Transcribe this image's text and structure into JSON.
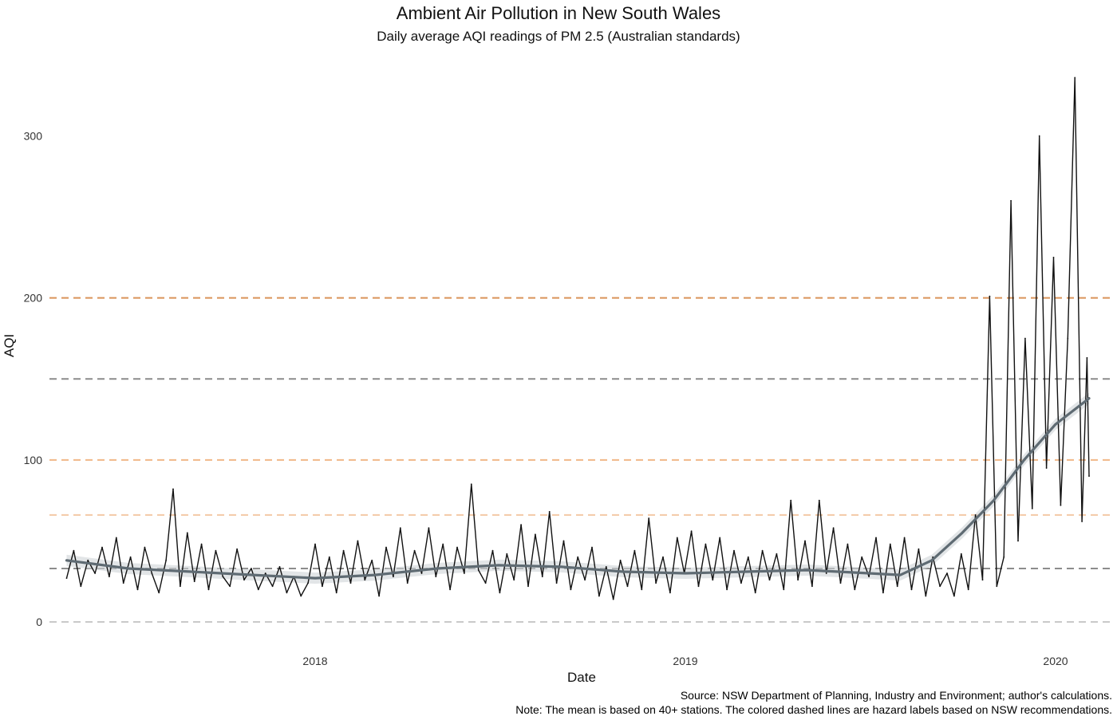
{
  "chart_data": {
    "type": "line",
    "title": "Ambient Air Pollution in New South Wales",
    "subtitle": "Daily average AQI readings of PM 2.5 (Australian standards)",
    "xlabel": "Date",
    "ylabel": "AQI",
    "x_ticks": [
      "2018",
      "2019",
      "2020"
    ],
    "y_ticks": [
      0,
      100,
      200,
      300
    ],
    "xlim": [
      "2017-05-01",
      "2020-02-10"
    ],
    "ylim": [
      -15,
      340
    ],
    "grid": false,
    "hazard_lines": [
      {
        "value": 0,
        "color": "#c9c9c9"
      },
      {
        "value": 33,
        "color": "#8c8c8c"
      },
      {
        "value": 66,
        "color": "#f3c9a6"
      },
      {
        "value": 100,
        "color": "#f1b887"
      },
      {
        "value": 150,
        "color": "#8c8c8c"
      },
      {
        "value": 200,
        "color": "#d9935a"
      }
    ],
    "series": [
      {
        "kind": "raw",
        "color": "#111111",
        "points": [
          [
            "2017-05-01",
            27
          ],
          [
            "2017-05-08",
            44
          ],
          [
            "2017-05-15",
            22
          ],
          [
            "2017-05-22",
            38
          ],
          [
            "2017-05-29",
            30
          ],
          [
            "2017-06-05",
            46
          ],
          [
            "2017-06-12",
            28
          ],
          [
            "2017-06-19",
            52
          ],
          [
            "2017-06-26",
            24
          ],
          [
            "2017-07-03",
            40
          ],
          [
            "2017-07-10",
            20
          ],
          [
            "2017-07-17",
            46
          ],
          [
            "2017-07-24",
            30
          ],
          [
            "2017-07-31",
            18
          ],
          [
            "2017-08-07",
            38
          ],
          [
            "2017-08-14",
            82
          ],
          [
            "2017-08-21",
            22
          ],
          [
            "2017-08-28",
            55
          ],
          [
            "2017-09-04",
            25
          ],
          [
            "2017-09-11",
            48
          ],
          [
            "2017-09-18",
            20
          ],
          [
            "2017-09-25",
            44
          ],
          [
            "2017-10-02",
            28
          ],
          [
            "2017-10-09",
            22
          ],
          [
            "2017-10-16",
            45
          ],
          [
            "2017-10-23",
            26
          ],
          [
            "2017-10-30",
            33
          ],
          [
            "2017-11-06",
            20
          ],
          [
            "2017-11-13",
            30
          ],
          [
            "2017-11-20",
            22
          ],
          [
            "2017-11-27",
            34
          ],
          [
            "2017-12-04",
            18
          ],
          [
            "2017-12-11",
            28
          ],
          [
            "2017-12-18",
            16
          ],
          [
            "2017-12-25",
            24
          ],
          [
            "2018-01-01",
            48
          ],
          [
            "2018-01-08",
            22
          ],
          [
            "2018-01-15",
            40
          ],
          [
            "2018-01-22",
            18
          ],
          [
            "2018-01-29",
            44
          ],
          [
            "2018-02-05",
            24
          ],
          [
            "2018-02-12",
            50
          ],
          [
            "2018-02-19",
            26
          ],
          [
            "2018-02-26",
            38
          ],
          [
            "2018-03-05",
            16
          ],
          [
            "2018-03-12",
            46
          ],
          [
            "2018-03-19",
            28
          ],
          [
            "2018-03-26",
            58
          ],
          [
            "2018-04-02",
            24
          ],
          [
            "2018-04-09",
            44
          ],
          [
            "2018-04-16",
            30
          ],
          [
            "2018-04-23",
            58
          ],
          [
            "2018-04-30",
            28
          ],
          [
            "2018-05-07",
            48
          ],
          [
            "2018-05-14",
            20
          ],
          [
            "2018-05-21",
            46
          ],
          [
            "2018-05-28",
            30
          ],
          [
            "2018-06-04",
            85
          ],
          [
            "2018-06-11",
            32
          ],
          [
            "2018-06-18",
            24
          ],
          [
            "2018-06-25",
            44
          ],
          [
            "2018-07-02",
            18
          ],
          [
            "2018-07-09",
            42
          ],
          [
            "2018-07-16",
            26
          ],
          [
            "2018-07-23",
            60
          ],
          [
            "2018-07-30",
            22
          ],
          [
            "2018-08-06",
            54
          ],
          [
            "2018-08-13",
            28
          ],
          [
            "2018-08-20",
            68
          ],
          [
            "2018-08-27",
            24
          ],
          [
            "2018-09-03",
            50
          ],
          [
            "2018-09-10",
            20
          ],
          [
            "2018-09-17",
            40
          ],
          [
            "2018-09-24",
            26
          ],
          [
            "2018-10-01",
            46
          ],
          [
            "2018-10-08",
            16
          ],
          [
            "2018-10-15",
            34
          ],
          [
            "2018-10-22",
            14
          ],
          [
            "2018-10-29",
            38
          ],
          [
            "2018-11-05",
            22
          ],
          [
            "2018-11-12",
            44
          ],
          [
            "2018-11-19",
            20
          ],
          [
            "2018-11-26",
            64
          ],
          [
            "2018-12-03",
            24
          ],
          [
            "2018-12-10",
            40
          ],
          [
            "2018-12-17",
            18
          ],
          [
            "2018-12-24",
            52
          ],
          [
            "2018-12-31",
            30
          ],
          [
            "2019-01-07",
            56
          ],
          [
            "2019-01-14",
            22
          ],
          [
            "2019-01-21",
            48
          ],
          [
            "2019-01-28",
            26
          ],
          [
            "2019-02-04",
            52
          ],
          [
            "2019-02-11",
            20
          ],
          [
            "2019-02-18",
            44
          ],
          [
            "2019-02-25",
            24
          ],
          [
            "2019-03-04",
            40
          ],
          [
            "2019-03-11",
            18
          ],
          [
            "2019-03-18",
            44
          ],
          [
            "2019-03-25",
            26
          ],
          [
            "2019-04-01",
            42
          ],
          [
            "2019-04-08",
            20
          ],
          [
            "2019-04-15",
            75
          ],
          [
            "2019-04-22",
            26
          ],
          [
            "2019-04-29",
            50
          ],
          [
            "2019-05-06",
            22
          ],
          [
            "2019-05-13",
            75
          ],
          [
            "2019-05-20",
            30
          ],
          [
            "2019-05-27",
            58
          ],
          [
            "2019-06-03",
            24
          ],
          [
            "2019-06-10",
            48
          ],
          [
            "2019-06-17",
            20
          ],
          [
            "2019-06-24",
            40
          ],
          [
            "2019-07-01",
            28
          ],
          [
            "2019-07-08",
            52
          ],
          [
            "2019-07-15",
            18
          ],
          [
            "2019-07-22",
            48
          ],
          [
            "2019-07-29",
            22
          ],
          [
            "2019-08-05",
            52
          ],
          [
            "2019-08-12",
            20
          ],
          [
            "2019-08-19",
            45
          ],
          [
            "2019-08-26",
            16
          ],
          [
            "2019-09-02",
            40
          ],
          [
            "2019-09-09",
            22
          ],
          [
            "2019-09-16",
            30
          ],
          [
            "2019-09-23",
            16
          ],
          [
            "2019-09-30",
            42
          ],
          [
            "2019-10-07",
            20
          ],
          [
            "2019-10-14",
            66
          ],
          [
            "2019-10-21",
            26
          ],
          [
            "2019-10-28",
            201
          ],
          [
            "2019-11-04",
            22
          ],
          [
            "2019-11-11",
            40
          ],
          [
            "2019-11-18",
            260
          ],
          [
            "2019-11-25",
            50
          ],
          [
            "2019-12-02",
            175
          ],
          [
            "2019-12-09",
            70
          ],
          [
            "2019-12-16",
            300
          ],
          [
            "2019-12-23",
            95
          ],
          [
            "2019-12-30",
            225
          ],
          [
            "2020-01-06",
            72
          ],
          [
            "2020-01-13",
            175
          ],
          [
            "2020-01-20",
            336
          ],
          [
            "2020-01-27",
            62
          ],
          [
            "2020-02-01",
            163
          ],
          [
            "2020-02-03",
            90
          ]
        ]
      },
      {
        "kind": "smooth",
        "color": "#5f6b73",
        "points": [
          [
            "2017-05-01",
            38
          ],
          [
            "2017-07-01",
            33
          ],
          [
            "2017-09-01",
            31
          ],
          [
            "2017-11-01",
            29
          ],
          [
            "2018-01-01",
            27
          ],
          [
            "2018-03-01",
            29
          ],
          [
            "2018-05-01",
            33
          ],
          [
            "2018-07-01",
            35
          ],
          [
            "2018-09-01",
            34
          ],
          [
            "2018-11-01",
            31
          ],
          [
            "2019-01-01",
            30
          ],
          [
            "2019-03-01",
            31
          ],
          [
            "2019-05-01",
            32
          ],
          [
            "2019-06-01",
            31
          ],
          [
            "2019-07-01",
            30
          ],
          [
            "2019-08-01",
            29
          ],
          [
            "2019-09-01",
            38
          ],
          [
            "2019-10-01",
            55
          ],
          [
            "2019-11-01",
            75
          ],
          [
            "2019-12-01",
            100
          ],
          [
            "2020-01-01",
            122
          ],
          [
            "2020-02-03",
            138
          ]
        ]
      }
    ]
  },
  "caption_source": "Source: NSW Department of Planning, Industry and Environment; author's calculations.",
  "caption_note": "Note: The mean is based on 40+ stations. The colored dashed lines are hazard labels based on NSW recommendations."
}
